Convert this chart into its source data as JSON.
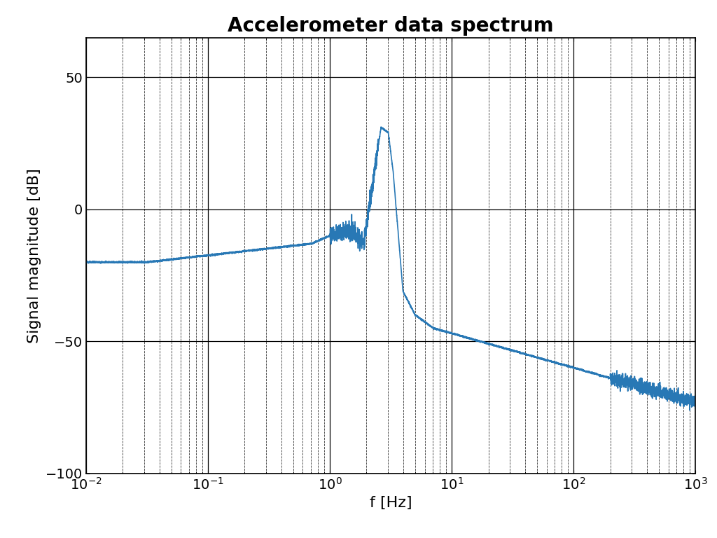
{
  "title": "Accelerometer data spectrum",
  "xlabel": "f [Hz]",
  "ylabel": "Signal magnitude [dB]",
  "xlim": [
    0.01,
    1000
  ],
  "ylim": [
    -100,
    65
  ],
  "yticks": [
    -100,
    -50,
    0,
    50
  ],
  "line_color": "#2878b5",
  "line_width": 1.2,
  "title_fontsize": 20,
  "label_fontsize": 16,
  "tick_fontsize": 14,
  "background_color": "#ffffff",
  "figure_width": 10.24,
  "figure_height": 7.68,
  "dpi": 100
}
